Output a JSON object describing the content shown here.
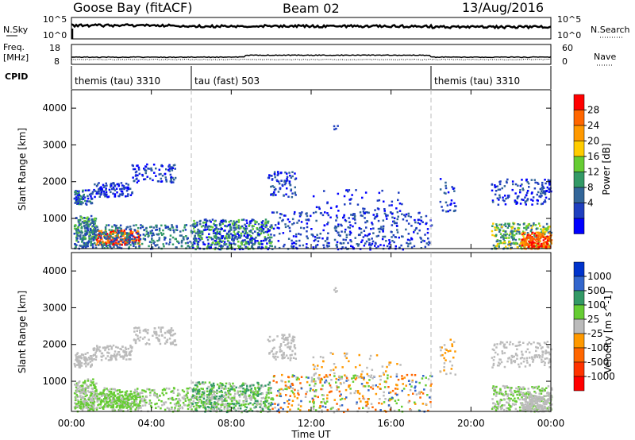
{
  "header": {
    "station": "Goose Bay (fitACF)",
    "beam": "Beam 02",
    "date": "13/Aug/2016"
  },
  "status_panel": {
    "nsky_label": "N.Sky",
    "nsky_ticks": [
      "10^5",
      "10^0"
    ],
    "nsearch_label": "N.Search",
    "nsearch_ticks": [
      "10^5",
      "10^0"
    ],
    "freq_label": "Freq.",
    "freq_unit": "[MHz]",
    "freq_ticks": [
      "18",
      "8"
    ],
    "nave_label": "Nave",
    "nave_ticks": [
      "60",
      "0"
    ],
    "cpid_label": "CPID",
    "cpid_segments": [
      {
        "label": "themis (tau) 3310",
        "start_hour": 0,
        "end_hour": 6
      },
      {
        "label": "tau (fast) 503",
        "start_hour": 6,
        "end_hour": 18
      },
      {
        "label": "themis (tau) 3310",
        "start_hour": 18,
        "end_hour": 24
      }
    ]
  },
  "chart_data": [
    {
      "type": "heatmap",
      "quantity": "Power",
      "xlabel": "Time UT",
      "ylabel": "Slant Range [km]",
      "colorbar_label": "Power [dB]",
      "colorbar_ticks": [
        "28",
        "24",
        "20",
        "16",
        "12",
        "8",
        "4"
      ],
      "colorbar_colors": [
        "#ff0000",
        "#ff6600",
        "#ff9900",
        "#ffcc00",
        "#66cc33",
        "#339966",
        "#336699",
        "#1f3fbf",
        "#0000ff"
      ],
      "xlim": [
        0,
        24
      ],
      "ylim": [
        180,
        4500
      ],
      "x_ticks": [
        "00:00",
        "04:00",
        "08:00",
        "12:00",
        "16:00",
        "20:00",
        "00:00"
      ],
      "y_ticks": [
        "1000",
        "2000",
        "3000",
        "4000"
      ],
      "y_tick_values": [
        1000,
        2000,
        3000,
        4000
      ]
    },
    {
      "type": "heatmap",
      "quantity": "Velocity",
      "xlabel": "Time UT",
      "ylabel": "Slant Range [km]",
      "colorbar_label": "Velocity [m s^-1]",
      "colorbar_ticks": [
        "1000",
        "500",
        "100",
        "25",
        "-25",
        "-100",
        "-500",
        "-1000"
      ],
      "colorbar_colors": [
        "#0033cc",
        "#3366cc",
        "#339966",
        "#66cc33",
        "#bbbbbb",
        "#ff9900",
        "#ff6600",
        "#ff3300",
        "#ff0000"
      ],
      "xlim": [
        0,
        24
      ],
      "ylim": [
        180,
        4500
      ],
      "x_ticks": [
        "00:00",
        "04:00",
        "08:00",
        "12:00",
        "16:00",
        "20:00",
        "00:00"
      ],
      "y_ticks": [
        "1000",
        "2000",
        "3000",
        "4000"
      ],
      "y_tick_values": [
        1000,
        2000,
        3000,
        4000
      ]
    }
  ]
}
